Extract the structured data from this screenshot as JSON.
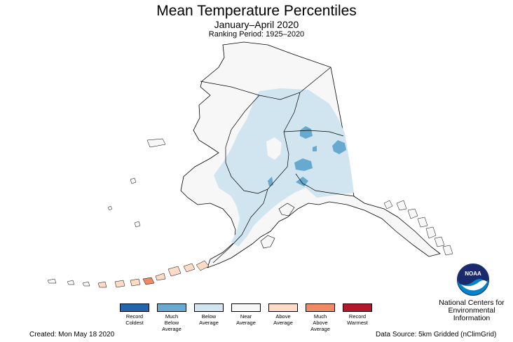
{
  "header": {
    "title": "Mean Temperature Percentiles",
    "subtitle": "January–April 2020",
    "ranking_period": "Ranking Period: 1925–2020"
  },
  "legend": {
    "items": [
      {
        "label": "Record\nColdest",
        "color": "#2166ac"
      },
      {
        "label": "Much\nBelow\nAverage",
        "color": "#67a9cf"
      },
      {
        "label": "Below\nAverage",
        "color": "#d1e5f0"
      },
      {
        "label": "Near\nAverage",
        "color": "#f7f7f7"
      },
      {
        "label": "Above\nAverage",
        "color": "#fddbc7"
      },
      {
        "label": "Much\nAbove\nAverage",
        "color": "#ef8a62"
      },
      {
        "label": "Record\nWarmest",
        "color": "#b2182b"
      }
    ]
  },
  "footer": {
    "created": "Created: Mon May 18 2020",
    "data_source": "Data Source: 5km Gridded (nClimGrid)"
  },
  "logo": {
    "text": "NOAA",
    "agency": "National Centers for\nEnvironmental\nInformation"
  },
  "colors": {
    "near_average": "#f7f7f7",
    "below_average": "#d1e5f0",
    "much_below_average": "#67a9cf",
    "above_average": "#fddbc7",
    "much_above_average": "#ef8a62",
    "record_warmest": "#b2182b",
    "noaa_blue": "#0085ca",
    "noaa_navy": "#1a2a6c"
  }
}
